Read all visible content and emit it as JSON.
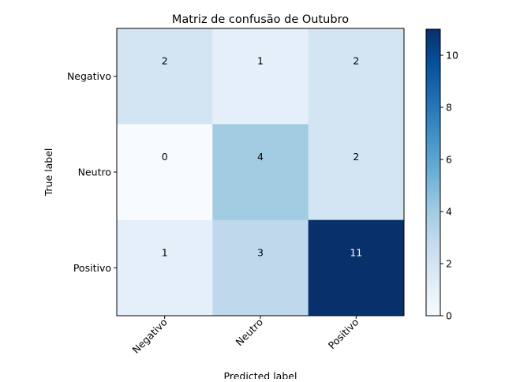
{
  "chart_data": {
    "type": "heatmap",
    "title": "Matriz de confusão de Outubro",
    "xlabel": "Predicted label",
    "ylabel": "True label",
    "x_categories": [
      "Negativo",
      "Neutro",
      "Positivo"
    ],
    "y_categories": [
      "Negativo",
      "Neutro",
      "Positivo"
    ],
    "values": [
      [
        2,
        1,
        2
      ],
      [
        0,
        4,
        2
      ],
      [
        1,
        3,
        11
      ]
    ],
    "colormap": "Blues",
    "color_range": [
      0,
      11
    ],
    "colorbar_ticks": [
      "0",
      "2",
      "4",
      "6",
      "8",
      "10"
    ],
    "colors": {
      "low": "#f7fbff",
      "high": "#08306b",
      "text_dark": "#000000",
      "text_light": "#ffffff"
    }
  }
}
